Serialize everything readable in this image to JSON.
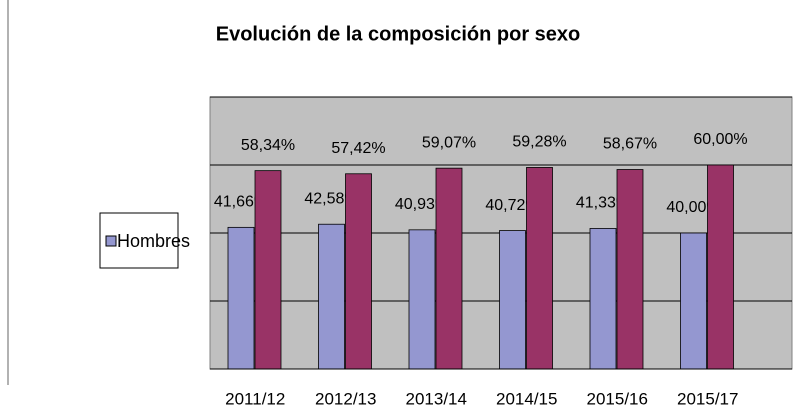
{
  "chart_data": {
    "type": "bar",
    "title": "Evolución de la composición por sexo",
    "categories": [
      "2011/12",
      "2012/13",
      "2013/14",
      "2014/15",
      "2015/16",
      "2015/17"
    ],
    "series": [
      {
        "name": "Hombres",
        "color": "#9497d0",
        "values": [
          41.66,
          42.58,
          40.93,
          40.72,
          41.33,
          40.0
        ],
        "value_labels": [
          "41,66%",
          "42,58%",
          "40,93%",
          "40,72%",
          "41,33%",
          "40,00%"
        ]
      },
      {
        "color": "#993366",
        "values": [
          58.34,
          57.42,
          59.07,
          59.28,
          58.67,
          60.0
        ],
        "value_labels": [
          "58,34%",
          "57,42%",
          "59,07%",
          "59,28%",
          "58,67%",
          "60,00%"
        ]
      }
    ],
    "ylim": [
      0,
      80
    ],
    "yticks": [
      0,
      20,
      40,
      60,
      80
    ],
    "grid": true
  }
}
